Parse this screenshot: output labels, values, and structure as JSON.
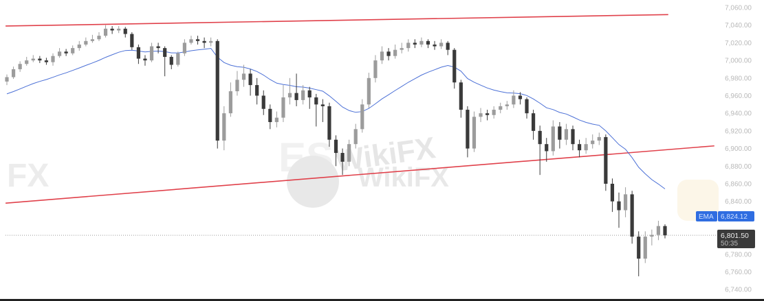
{
  "chart_data": {
    "type": "candlestick",
    "title": "",
    "xlabel": "",
    "ylabel": "",
    "ylim": [
      6740,
      7060
    ],
    "yticks": [
      "7,060.00",
      "7,040.00",
      "7,020.00",
      "7,000.00",
      "6,980.00",
      "6,960.00",
      "6,940.00",
      "6,920.00",
      "6,900.00",
      "6,880.00",
      "6,860.00",
      "6,840.00",
      "6,780.00",
      "6,760.00",
      "6,740.00"
    ],
    "ytick_values": [
      7060,
      7040,
      7020,
      7000,
      6980,
      6960,
      6940,
      6920,
      6900,
      6880,
      6860,
      6840,
      6780,
      6760,
      6740
    ],
    "grid": false,
    "ohlc": [
      [
        6976,
        6984,
        6972,
        6981
      ],
      [
        6981,
        6993,
        6979,
        6990
      ],
      [
        6990,
        6999,
        6987,
        6996
      ],
      [
        6996,
        7004,
        6994,
        7000
      ],
      [
        7000,
        7006,
        6998,
        7002
      ],
      [
        7002,
        7005,
        6997,
        7000
      ],
      [
        7000,
        7003,
        6995,
        6998
      ],
      [
        6998,
        7008,
        6994,
        7005
      ],
      [
        7005,
        7014,
        7003,
        7010
      ],
      [
        7010,
        7013,
        7005,
        7008
      ],
      [
        7008,
        7017,
        7006,
        7014
      ],
      [
        7014,
        7022,
        7011,
        7018
      ],
      [
        7018,
        7026,
        7016,
        7022
      ],
      [
        7022,
        7029,
        7020,
        7024
      ],
      [
        7024,
        7032,
        7022,
        7028
      ],
      [
        7028,
        7040,
        7026,
        7036
      ],
      [
        7036,
        7039,
        7030,
        7034
      ],
      [
        7034,
        7039,
        7031,
        7036
      ],
      [
        7036,
        7038,
        7026,
        7030
      ],
      [
        7030,
        7032,
        7012,
        7015
      ],
      [
        7015,
        7018,
        6996,
        7002
      ],
      [
        7002,
        7006,
        6994,
        7000
      ],
      [
        7000,
        7020,
        6998,
        7016
      ],
      [
        7016,
        7020,
        7008,
        7014
      ],
      [
        7014,
        7016,
        6982,
        7004
      ],
      [
        7004,
        7006,
        6990,
        6995
      ],
      [
        6995,
        7010,
        6993,
        7008
      ],
      [
        7008,
        7024,
        7005,
        7020
      ],
      [
        7020,
        7028,
        7018,
        7024
      ],
      [
        7024,
        7028,
        7018,
        7022
      ],
      [
        7022,
        7026,
        7014,
        7020
      ],
      [
        7020,
        7026,
        7016,
        7022
      ],
      [
        7022,
        7024,
        6900,
        6909
      ],
      [
        6909,
        6948,
        6898,
        6940
      ],
      [
        6940,
        6975,
        6936,
        6965
      ],
      [
        6965,
        6988,
        6960,
        6978
      ],
      [
        6978,
        6995,
        6970,
        6985
      ],
      [
        6985,
        6990,
        6960,
        6972
      ],
      [
        6972,
        6980,
        6950,
        6960
      ],
      [
        6960,
        6966,
        6938,
        6945
      ],
      [
        6945,
        6950,
        6922,
        6930
      ],
      [
        6930,
        6942,
        6924,
        6935
      ],
      [
        6935,
        6972,
        6930,
        6958
      ],
      [
        6958,
        6980,
        6950,
        6963
      ],
      [
        6963,
        6985,
        6948,
        6955
      ],
      [
        6955,
        6972,
        6950,
        6966
      ],
      [
        6966,
        6970,
        6945,
        6958
      ],
      [
        6958,
        6962,
        6925,
        6950
      ],
      [
        6950,
        6956,
        6930,
        6948
      ],
      [
        6948,
        6952,
        6902,
        6910
      ],
      [
        6910,
        6915,
        6880,
        6895
      ],
      [
        6895,
        6900,
        6870,
        6885
      ],
      [
        6885,
        6910,
        6880,
        6905
      ],
      [
        6905,
        6928,
        6900,
        6922
      ],
      [
        6922,
        6956,
        6918,
        6950
      ],
      [
        6950,
        6986,
        6946,
        6980
      ],
      [
        6980,
        7006,
        6975,
        7000
      ],
      [
        7000,
        7016,
        6996,
        7010
      ],
      [
        7010,
        7014,
        7000,
        7005
      ],
      [
        7005,
        7018,
        7002,
        7012
      ],
      [
        7012,
        7020,
        7008,
        7014
      ],
      [
        7014,
        7024,
        7010,
        7020
      ],
      [
        7020,
        7024,
        7014,
        7018
      ],
      [
        7018,
        7026,
        7015,
        7022
      ],
      [
        7022,
        7024,
        7014,
        7018
      ],
      [
        7018,
        7022,
        7012,
        7016
      ],
      [
        7016,
        7024,
        7013,
        7020
      ],
      [
        7020,
        7022,
        7006,
        7012
      ],
      [
        7012,
        7014,
        6968,
        6975
      ],
      [
        6975,
        6978,
        6935,
        6944
      ],
      [
        6944,
        6948,
        6890,
        6900
      ],
      [
        6900,
        6942,
        6896,
        6936
      ],
      [
        6936,
        6946,
        6930,
        6940
      ],
      [
        6940,
        6944,
        6932,
        6938
      ],
      [
        6938,
        6948,
        6934,
        6944
      ],
      [
        6944,
        6952,
        6940,
        6948
      ],
      [
        6948,
        6954,
        6944,
        6950
      ],
      [
        6950,
        6966,
        6946,
        6960
      ],
      [
        6960,
        6964,
        6950,
        6956
      ],
      [
        6956,
        6958,
        6934,
        6940
      ],
      [
        6940,
        6944,
        6910,
        6920
      ],
      [
        6920,
        6926,
        6870,
        6905
      ],
      [
        6905,
        6912,
        6885,
        6897
      ],
      [
        6897,
        6932,
        6892,
        6925
      ],
      [
        6925,
        6930,
        6900,
        6910
      ],
      [
        6910,
        6928,
        6904,
        6922
      ],
      [
        6922,
        6926,
        6898,
        6905
      ],
      [
        6905,
        6910,
        6890,
        6898
      ],
      [
        6898,
        6912,
        6894,
        6905
      ],
      [
        6905,
        6916,
        6900,
        6909
      ],
      [
        6909,
        6918,
        6904,
        6913
      ],
      [
        6913,
        6916,
        6852,
        6860
      ],
      [
        6860,
        6866,
        6828,
        6840
      ],
      [
        6840,
        6850,
        6810,
        6830
      ],
      [
        6830,
        6856,
        6822,
        6848
      ],
      [
        6848,
        6852,
        6792,
        6800
      ],
      [
        6800,
        6806,
        6755,
        6775
      ],
      [
        6775,
        6806,
        6770,
        6800
      ],
      [
        6800,
        6808,
        6790,
        6802
      ],
      [
        6802,
        6818,
        6796,
        6812
      ],
      [
        6812,
        6814,
        6798,
        6801.5
      ]
    ],
    "ema": {
      "label": "EMA",
      "value": "6,824.12",
      "color": "#4a6fd6"
    },
    "last_price": {
      "value": "6,801.50",
      "countdown": "50:35",
      "price": 6801.5
    },
    "trendlines": [
      {
        "color": "#e0404a",
        "start": {
          "index": -0.2,
          "price": 7039
        },
        "end": {
          "index": 100.5,
          "price": 7052
        }
      },
      {
        "color": "#e0404a",
        "start": {
          "index": -0.2,
          "price": 6838
        },
        "end": {
          "index": 107.5,
          "price": 6903
        }
      }
    ],
    "colors": {
      "up": "#9c9c9c",
      "down": "#3a3a3a"
    }
  },
  "watermarks": [
    "WikiFX",
    "WikiFX",
    "FX",
    "ES"
  ]
}
